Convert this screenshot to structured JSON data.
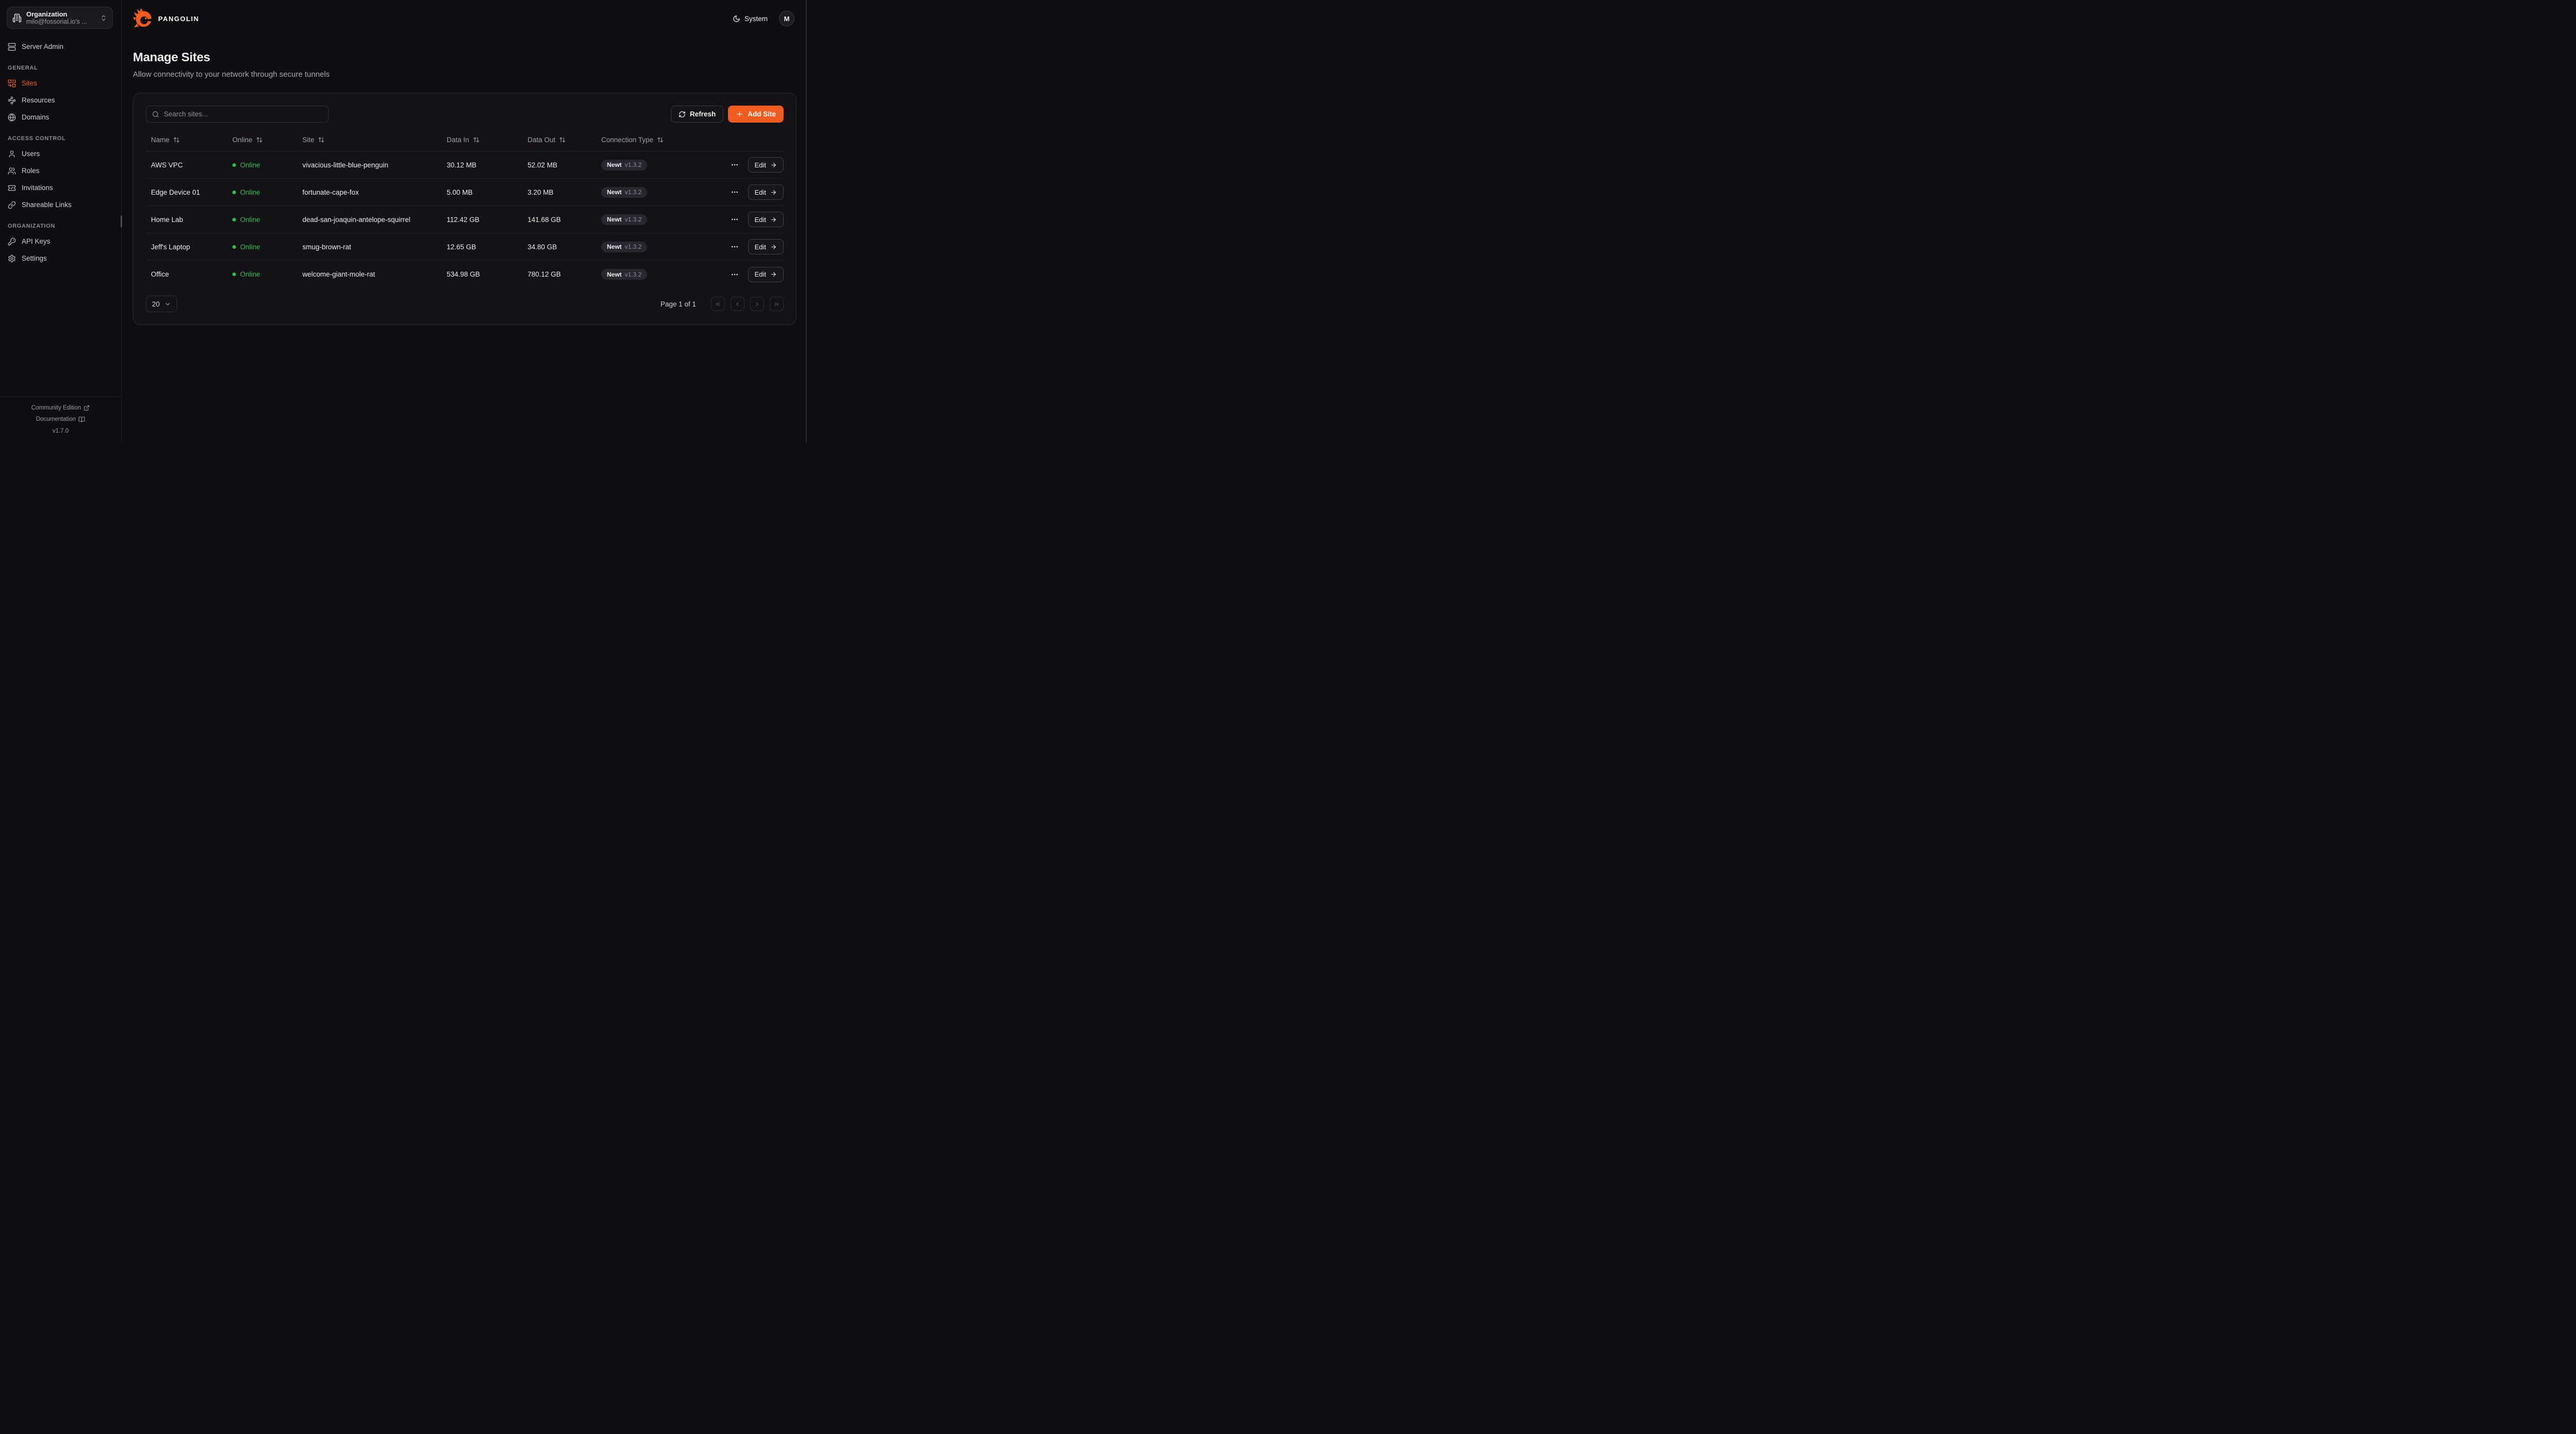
{
  "theme": {
    "accent": "#f15b1e",
    "online_green": "#2ebd59"
  },
  "brand": {
    "name": "PANGOLIN",
    "logo_icon": "pangolin-logo-icon"
  },
  "org_selector": {
    "label": "Organization",
    "value": "milo@fossorial.io's ...",
    "icon": "building-icon"
  },
  "sidebar": {
    "server_admin": {
      "label": "Server Admin",
      "icon": "server-icon"
    },
    "sections": [
      {
        "label": "GENERAL",
        "items": [
          {
            "label": "Sites",
            "icon": "combine-icon",
            "active": true
          },
          {
            "label": "Resources",
            "icon": "waypoints-icon",
            "active": false
          },
          {
            "label": "Domains",
            "icon": "globe-icon",
            "active": false
          }
        ]
      },
      {
        "label": "ACCESS CONTROL",
        "items": [
          {
            "label": "Users",
            "icon": "user-icon",
            "active": false
          },
          {
            "label": "Roles",
            "icon": "users-icon",
            "active": false
          },
          {
            "label": "Invitations",
            "icon": "ticket-check-icon",
            "active": false
          },
          {
            "label": "Shareable Links",
            "icon": "link-icon",
            "active": false
          }
        ]
      },
      {
        "label": "ORGANIZATION",
        "items": [
          {
            "label": "API Keys",
            "icon": "key-icon",
            "active": false
          },
          {
            "label": "Settings",
            "icon": "settings-icon",
            "active": false
          }
        ]
      }
    ],
    "footer": {
      "community_label": "Community Edition",
      "docs_label": "Documentation",
      "version": "v1.7.0"
    }
  },
  "topbar": {
    "theme_label": "System",
    "avatar_initial": "M"
  },
  "page": {
    "title": "Manage Sites",
    "subtitle": "Allow connectivity to your network through secure tunnels"
  },
  "toolbar": {
    "search_placeholder": "Search sites...",
    "refresh_label": "Refresh",
    "add_site_label": "Add Site"
  },
  "table": {
    "columns": [
      {
        "label": "Name"
      },
      {
        "label": "Online"
      },
      {
        "label": "Site"
      },
      {
        "label": "Data In"
      },
      {
        "label": "Data Out"
      },
      {
        "label": "Connection Type"
      }
    ],
    "edit_label": "Edit",
    "rows": [
      {
        "name": "AWS VPC",
        "status": "Online",
        "site": "vivacious-little-blue-penguin",
        "data_in": "30.12 MB",
        "data_out": "52.02 MB",
        "connection": {
          "client": "Newt",
          "version": "v1.3.2"
        }
      },
      {
        "name": "Edge Device 01",
        "status": "Online",
        "site": "fortunate-cape-fox",
        "data_in": "5.00 MB",
        "data_out": "3.20 MB",
        "connection": {
          "client": "Newt",
          "version": "v1.3.2"
        }
      },
      {
        "name": "Home Lab",
        "status": "Online",
        "site": "dead-san-joaquin-antelope-squirrel",
        "data_in": "112.42 GB",
        "data_out": "141.68 GB",
        "connection": {
          "client": "Newt",
          "version": "v1.3.2"
        }
      },
      {
        "name": "Jeff's Laptop",
        "status": "Online",
        "site": "smug-brown-rat",
        "data_in": "12.65 GB",
        "data_out": "34.80 GB",
        "connection": {
          "client": "Newt",
          "version": "v1.3.2"
        }
      },
      {
        "name": "Office",
        "status": "Online",
        "site": "welcome-giant-mole-rat",
        "data_in": "534.98 GB",
        "data_out": "780.12 GB",
        "connection": {
          "client": "Newt",
          "version": "v1.3.2"
        }
      }
    ]
  },
  "pagination": {
    "page_size": "20",
    "status": "Page 1 of 1"
  }
}
